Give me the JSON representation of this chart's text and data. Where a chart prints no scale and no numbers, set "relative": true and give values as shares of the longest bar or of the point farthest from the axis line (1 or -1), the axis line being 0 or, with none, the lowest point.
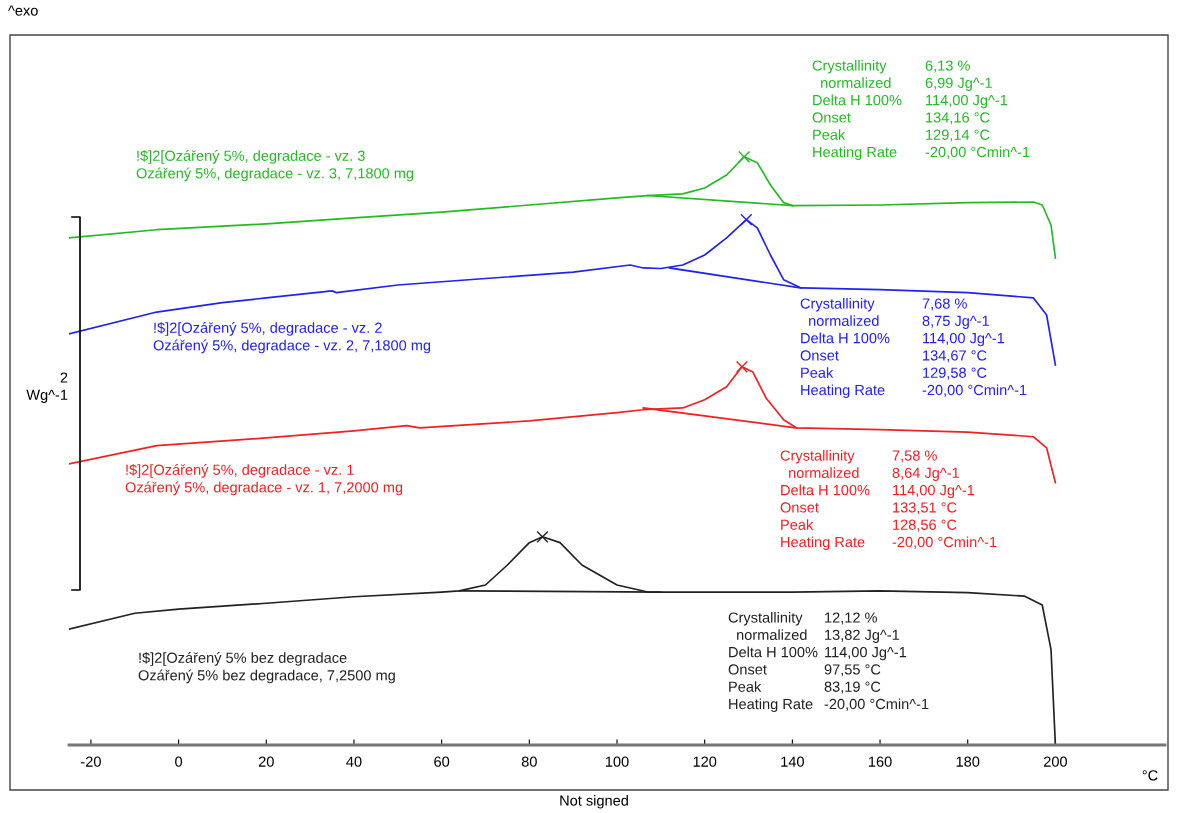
{
  "chart_data": {
    "type": "line",
    "relative": true,
    "xlabel": "°C",
    "xlim": [
      -25,
      225
    ],
    "xticks": [
      -20,
      0,
      20,
      40,
      60,
      80,
      100,
      120,
      140,
      160,
      180,
      200
    ],
    "series": [
      {
        "name": "!$]2[Ozářený 5%, degradace - vz. 3\nOzářený 5%, degradace - vz. 3, 7,1800 mg",
        "color": "#22bb22",
        "x": [
          -25,
          -5,
          20,
          40,
          60,
          80,
          100,
          107,
          115,
          120,
          125,
          129,
          132,
          135,
          138,
          140,
          160,
          180,
          195,
          197,
          199,
          200
        ],
        "values": [
          0.862,
          0.876,
          0.886,
          0.896,
          0.906,
          0.918,
          0.93,
          0.934,
          0.937,
          0.947,
          0.969,
          1.0,
          0.99,
          0.952,
          0.922,
          0.917,
          0.918,
          0.922,
          0.923,
          0.918,
          0.884,
          0.828
        ]
      },
      {
        "name": "!$]2[Ozářený 5%, degradace - vz. 2\nOzářený 5%, degradace - vz. 2, 7,1800 mg",
        "color": "#2222ee",
        "x": [
          -25,
          -5,
          10,
          20,
          35,
          36,
          50,
          70,
          90,
          103,
          106,
          110,
          115,
          120,
          125,
          129.5,
          132,
          135,
          138,
          142,
          160,
          180,
          195,
          198,
          200
        ],
        "values": [
          0.699,
          0.736,
          0.752,
          0.76,
          0.772,
          0.769,
          0.782,
          0.793,
          0.804,
          0.816,
          0.811,
          0.81,
          0.816,
          0.833,
          0.862,
          0.893,
          0.879,
          0.833,
          0.791,
          0.777,
          0.774,
          0.769,
          0.76,
          0.731,
          0.646
        ]
      },
      {
        "name": "!$]2[Ozářený 5%, degradace - vz. 1\nOzářený 5%, degradace - vz. 1, 7,2000 mg",
        "color": "#ee2222",
        "x": [
          -25,
          -5,
          20,
          40,
          52,
          55,
          80,
          100,
          106,
          115,
          120,
          125,
          128.5,
          131,
          134,
          138,
          141,
          160,
          180,
          195,
          198,
          200
        ],
        "values": [
          0.478,
          0.509,
          0.522,
          0.534,
          0.543,
          0.539,
          0.551,
          0.565,
          0.57,
          0.573,
          0.587,
          0.609,
          0.643,
          0.634,
          0.59,
          0.553,
          0.539,
          0.536,
          0.532,
          0.524,
          0.505,
          0.446
        ]
      },
      {
        "name": "!$]2[Ozářený 5% bez degradace\nOzářený 5% bez degradace, 7,2500 mg",
        "color": "#222222",
        "x": [
          -25,
          -10,
          0,
          20,
          40,
          60,
          64,
          70,
          75,
          80,
          83,
          87,
          92,
          100,
          107,
          110,
          140,
          160,
          180,
          193,
          197,
          199,
          200
        ],
        "values": [
          0.197,
          0.224,
          0.231,
          0.241,
          0.252,
          0.26,
          0.262,
          0.272,
          0.306,
          0.344,
          0.354,
          0.344,
          0.306,
          0.272,
          0.26,
          0.26,
          0.26,
          0.262,
          0.259,
          0.253,
          0.238,
          0.162,
          0.0
        ]
      },
      {
        "color": "#22bb22",
        "x": [
          107,
          140
        ],
        "values": [
          0.934,
          0.917
        ]
      },
      {
        "color": "#2222ee",
        "x": [
          112,
          142
        ],
        "values": [
          0.811,
          0.777
        ]
      },
      {
        "color": "#ee2222",
        "x": [
          106,
          141
        ],
        "values": [
          0.573,
          0.539
        ]
      },
      {
        "color": "#222222",
        "x": [
          64,
          110
        ],
        "values": [
          0.262,
          0.26
        ]
      },
      {
        "type": "scatter",
        "marker": "cross",
        "color": "#22bb22",
        "x": [
          129
        ],
        "values": [
          1.0
        ]
      },
      {
        "type": "scatter",
        "marker": "cross",
        "color": "#2222ee",
        "x": [
          129.5
        ],
        "values": [
          0.893
        ]
      },
      {
        "type": "scatter",
        "marker": "cross",
        "color": "#ee2222",
        "x": [
          128.5
        ],
        "values": [
          0.643
        ]
      },
      {
        "type": "scatter",
        "marker": "cross",
        "color": "#222222",
        "x": [
          83
        ],
        "values": [
          0.354
        ]
      }
    ],
    "annotations": [
      "^exo",
      "2\nWg^-1",
      "Not signed",
      "Crystallinity\n  normalized\nDelta H 100%\nOnset\nPeak\nHeating Rate",
      "6,13 %\n6,99 Jg^-1\n114,00 Jg^-1\n134,16 °C\n129,14 °C\n-20,00 °Cmin^-1",
      "Crystallinity\n  normalized\nDelta H 100%\nOnset\nPeak\nHeating Rate",
      "7,68 %\n8,75 Jg^-1\n114,00 Jg^-1\n134,67 °C\n129,58 °C\n-20,00 °Cmin^-1",
      "Crystallinity\n  normalized\nDelta H 100%\nOnset\nPeak\nHeating Rate",
      "7,58 %\n8,64 Jg^-1\n114,00 Jg^-1\n133,51 °C\n128,56 °C\n-20,00 °Cmin^-1",
      "Crystallinity\n  normalized\nDelta H 100%\nOnset\nPeak\nHeating Rate",
      "12,12 %\n13,82 Jg^-1\n114,00 Jg^-1\n97,55 °C\n83,19 °C\n-20,00 °Cmin^-1"
    ]
  }
}
